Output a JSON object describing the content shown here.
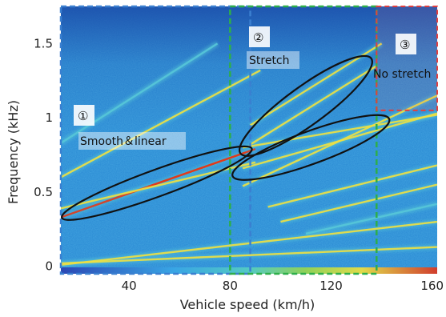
{
  "chart_data": {
    "type": "heatmap",
    "xlabel": "Vehicle speed (km/h)",
    "ylabel": "Frequency (kHz)",
    "x_ticks": [
      40,
      80,
      120,
      160
    ],
    "y_ticks": [
      0,
      0.5,
      1,
      1.5
    ],
    "xlim": [
      13,
      162
    ],
    "ylim": [
      -0.05,
      1.75
    ],
    "colors": {
      "background": "#2f8fd6",
      "low": "#1f5fb8",
      "mid": "#56c7d8",
      "high": "#f0e040",
      "peak": "#e23a1a",
      "region_1_box": "#3a7fd0",
      "region_2_box": "#2eae4a",
      "region_3_box": "#e04040",
      "ellipse": "#111111"
    },
    "regions": [
      {
        "marker": "①",
        "label": "Smooth＆linear",
        "x_range": [
          13,
          88
        ]
      },
      {
        "marker": "②",
        "label": "Stretch",
        "x_range": [
          80,
          138
        ]
      },
      {
        "marker": "③",
        "label": "No stretch",
        "x_range": [
          138,
          162
        ],
        "y_range": [
          1.05,
          1.75
        ]
      }
    ],
    "lines": [
      {
        "x": [
          13,
          162
        ],
        "y": [
          0.01,
          0.3
        ],
        "intensity": 0.75
      },
      {
        "x": [
          13,
          162
        ],
        "y": [
          0.02,
          0.13
        ],
        "intensity": 0.6
      },
      {
        "x": [
          13,
          90
        ],
        "y": [
          0.33,
          0.79
        ],
        "intensity": 1.0
      },
      {
        "x": [
          13,
          90
        ],
        "y": [
          0.39,
          0.7
        ],
        "intensity": 0.8
      },
      {
        "x": [
          13,
          92
        ],
        "y": [
          0.6,
          1.32
        ],
        "intensity": 0.55
      },
      {
        "x": [
          13,
          75
        ],
        "y": [
          0.83,
          1.5
        ],
        "intensity": 0.45
      },
      {
        "x": [
          85,
          162
        ],
        "y": [
          0.54,
          1.15
        ],
        "intensity": 0.85
      },
      {
        "x": [
          85,
          162
        ],
        "y": [
          0.66,
          1.03
        ],
        "intensity": 0.75
      },
      {
        "x": [
          85,
          162
        ],
        "y": [
          0.8,
          1.02
        ],
        "intensity": 0.6
      },
      {
        "x": [
          88,
          138
        ],
        "y": [
          0.82,
          1.35
        ],
        "intensity": 0.7
      },
      {
        "x": [
          88,
          140
        ],
        "y": [
          0.95,
          1.5
        ],
        "intensity": 0.55
      },
      {
        "x": [
          95,
          162
        ],
        "y": [
          0.4,
          0.68
        ],
        "intensity": 0.65
      },
      {
        "x": [
          100,
          162
        ],
        "y": [
          0.3,
          0.55
        ],
        "intensity": 0.6
      },
      {
        "x": [
          110,
          162
        ],
        "y": [
          0.22,
          0.42
        ],
        "intensity": 0.5
      }
    ],
    "ellipses": [
      {
        "center": [
          51,
          0.56
        ],
        "rx_data": 40,
        "ry_kHz": 0.09,
        "slope_deg": 20
      },
      {
        "center": [
          110,
          1.08
        ],
        "rx_data": 32,
        "ry_kHz": 0.13,
        "slope_deg": 36
      },
      {
        "center": [
          112,
          0.8
        ],
        "rx_data": 33,
        "ry_kHz": 0.11,
        "slope_deg": 20
      }
    ]
  }
}
